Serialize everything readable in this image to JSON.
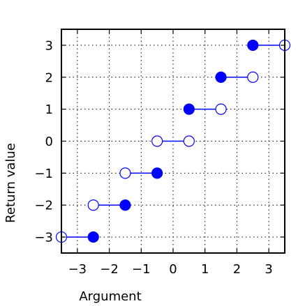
{
  "chart_data": {
    "type": "line",
    "title": "",
    "xlabel": "Argument",
    "ylabel": "Return value",
    "xlim": [
      -3.5,
      3.5
    ],
    "ylim": [
      -3.5,
      3.5
    ],
    "grid": true,
    "grid_style": "dotted",
    "xticks": [
      -3,
      -2,
      -1,
      0,
      1,
      2,
      3
    ],
    "yticks": [
      -3,
      -2,
      -1,
      0,
      1,
      2,
      3
    ],
    "xtick_labels": [
      "−3",
      "−2",
      "−1",
      "0",
      "1",
      "2",
      "3"
    ],
    "ytick_labels": [
      "−3",
      "−2",
      "−1",
      "0",
      "1",
      "2",
      "3"
    ],
    "color": "#0000ff",
    "segments": [
      {
        "x_start": -3.5,
        "x_end": -2.5,
        "y": -3,
        "start_marker": "open",
        "end_marker": "filled"
      },
      {
        "x_start": -2.5,
        "x_end": -1.5,
        "y": -2,
        "start_marker": "open",
        "end_marker": "filled"
      },
      {
        "x_start": -1.5,
        "x_end": -0.5,
        "y": -1,
        "start_marker": "open",
        "end_marker": "filled"
      },
      {
        "x_start": -0.5,
        "x_end": 0.5,
        "y": 0,
        "start_marker": "open",
        "end_marker": "open"
      },
      {
        "x_start": 0.5,
        "x_end": 1.5,
        "y": 1,
        "start_marker": "filled",
        "end_marker": "open"
      },
      {
        "x_start": 1.5,
        "x_end": 2.5,
        "y": 2,
        "start_marker": "filled",
        "end_marker": "open"
      },
      {
        "x_start": 2.5,
        "x_end": 3.5,
        "y": 3,
        "start_marker": "filled",
        "end_marker": "open"
      }
    ]
  }
}
